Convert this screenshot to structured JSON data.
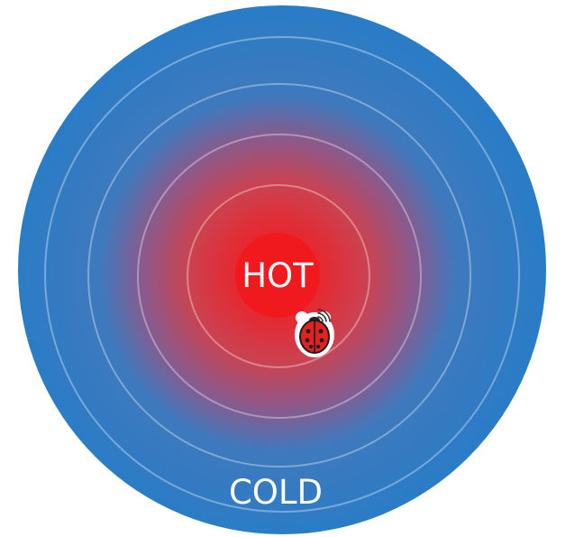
{
  "labels": {
    "hot": "HOT",
    "cold": "COLD"
  },
  "colors": {
    "hot": "#f01a1e",
    "cold": "#2a7cc6",
    "ring": "#ffffff",
    "marker_fill": "#e02222",
    "marker_outline": "#ffffff"
  },
  "marker": {
    "icon": "ladybug-icon",
    "signal_icon": "wifi-signal-icon"
  }
}
